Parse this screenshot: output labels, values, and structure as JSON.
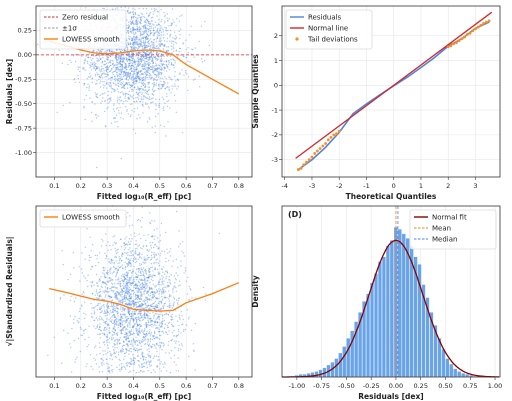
{
  "chart_data": [
    {
      "type": "scatter",
      "panel": "A",
      "xlabel": "Fitted log₁₀(R_eff) [pc]",
      "ylabel": "Residuals [dex]",
      "xlim": [
        0.03,
        0.85
      ],
      "ylim": [
        -1.25,
        0.5
      ],
      "xticks": [
        "0.1",
        "0.2",
        "0.3",
        "0.4",
        "0.5",
        "0.6",
        "0.7",
        "0.8"
      ],
      "yticks": [
        "0.25",
        "0.00",
        "-0.25",
        "-0.50",
        "-0.75",
        "-1.00"
      ],
      "legend": {
        "position": "top-left",
        "entries": [
          "Zero residual",
          "±1σ",
          "LOWESS smooth"
        ]
      },
      "series": [
        {
          "name": "Zero residual",
          "kind": "hline",
          "y": 0.0,
          "color": "#d62728",
          "dash": true
        },
        {
          "name": "±1σ",
          "kind": "hline",
          "color": "#999999",
          "dash": true
        },
        {
          "name": "LOWESS smooth",
          "kind": "line",
          "color": "#ff7f0e",
          "x": [
            0.08,
            0.15,
            0.2,
            0.25,
            0.3,
            0.35,
            0.4,
            0.45,
            0.5,
            0.55,
            0.6,
            0.7,
            0.8
          ],
          "y": [
            0.14,
            0.09,
            0.05,
            0.02,
            0.01,
            0.02,
            0.04,
            0.05,
            0.04,
            0.0,
            -0.1,
            -0.25,
            -0.4
          ]
        }
      ],
      "scatter": {
        "x_center": 0.4,
        "x_spread": 0.09,
        "y_center": -0.02,
        "y_spread": 0.27,
        "n": 2300,
        "color": "#4a86e8"
      }
    },
    {
      "type": "line",
      "panel": "B",
      "xlabel": "Theoretical Quantiles",
      "ylabel": "Sample Quantiles",
      "xlim": [
        -4.1,
        3.9
      ],
      "ylim": [
        -3.7,
        3.2
      ],
      "xticks": [
        "-4",
        "-3",
        "-2",
        "-1",
        "0",
        "1",
        "2",
        "3"
      ],
      "yticks": [
        "2",
        "1",
        "0",
        "-1",
        "-2",
        "-3"
      ],
      "legend": {
        "position": "top-left",
        "entries": [
          "Residuals",
          "Normal line",
          "Tail deviations"
        ]
      },
      "series": [
        {
          "name": "Residuals",
          "kind": "line",
          "color": "#4a86e8",
          "x": [
            -3.5,
            -3.0,
            -2.5,
            -2.0,
            -1.5,
            -1.0,
            -0.5,
            0.0,
            0.5,
            1.0,
            1.5,
            2.0,
            2.5,
            3.0,
            3.5
          ],
          "y": [
            -3.4,
            -3.0,
            -2.5,
            -1.9,
            -1.15,
            -0.75,
            -0.38,
            -0.02,
            0.33,
            0.72,
            1.12,
            1.58,
            1.88,
            2.3,
            2.55
          ]
        },
        {
          "name": "Normal line",
          "kind": "line",
          "color": "#d62728",
          "x": [
            -3.6,
            3.6
          ],
          "y": [
            -2.95,
            2.95
          ]
        },
        {
          "name": "Tail deviations",
          "kind": "points",
          "color": "#ff8c1a",
          "x": [
            -3.5,
            -3.4,
            -3.3,
            -3.2,
            -3.1,
            -3.0,
            -2.9,
            -2.8,
            -2.7,
            -2.6,
            -2.5,
            -2.4,
            -2.3,
            -2.2,
            -2.1,
            -2.0,
            2.0,
            2.1,
            2.2,
            2.3,
            2.4,
            2.5,
            2.6,
            2.7,
            2.8,
            2.9,
            3.0,
            3.1,
            3.2,
            3.3,
            3.4,
            3.5
          ],
          "y": [
            -3.4,
            -3.35,
            -3.2,
            -3.1,
            -3.0,
            -2.9,
            -2.75,
            -2.65,
            -2.55,
            -2.45,
            -2.35,
            -2.2,
            -2.1,
            -2.0,
            -1.95,
            -1.85,
            1.55,
            1.6,
            1.68,
            1.72,
            1.8,
            1.88,
            1.95,
            2.05,
            2.1,
            2.2,
            2.28,
            2.35,
            2.42,
            2.5,
            2.55,
            2.6
          ]
        }
      ]
    },
    {
      "type": "scatter",
      "panel": "C",
      "xlabel": "Fitted log₁₀(R_eff) [pc]",
      "ylabel": "√|Standardized Residuals|",
      "xlim": [
        0.03,
        0.85
      ],
      "ylim": [
        -0.05,
        2.0
      ],
      "xticks": [
        "0.1",
        "0.2",
        "0.3",
        "0.4",
        "0.5",
        "0.6",
        "0.7",
        "0.8"
      ],
      "yticks": [],
      "legend": {
        "position": "top-left",
        "entries": [
          "LOWESS smooth"
        ]
      },
      "series": [
        {
          "name": "LOWESS smooth",
          "kind": "line",
          "color": "#ff7f0e",
          "x": [
            0.08,
            0.15,
            0.2,
            0.25,
            0.3,
            0.35,
            0.4,
            0.45,
            0.5,
            0.55,
            0.6,
            0.7,
            0.8
          ],
          "y": [
            1.01,
            0.96,
            0.92,
            0.88,
            0.86,
            0.82,
            0.76,
            0.75,
            0.74,
            0.75,
            0.84,
            0.95,
            1.08
          ]
        }
      ],
      "scatter": {
        "x_center": 0.4,
        "x_spread": 0.09,
        "y_center": 0.8,
        "y_spread": 0.4,
        "n": 2300,
        "color": "#4a86e8"
      }
    },
    {
      "type": "bar",
      "panel": "D",
      "label": "(D)",
      "xlabel": "Residuals [dex]",
      "ylabel": "Density",
      "xlim": [
        -1.15,
        1.05
      ],
      "ylim": [
        0,
        1.85
      ],
      "xticks": [
        "-1.00",
        "-0.75",
        "-0.50",
        "-0.25",
        "0.00",
        "0.25",
        "0.50",
        "0.75",
        "1.00"
      ],
      "yticks": [],
      "legend": {
        "position": "top-right",
        "entries": [
          "Normal fit",
          "Mean",
          "Median"
        ]
      },
      "series": [
        {
          "name": "Normal fit",
          "kind": "pdf",
          "mean": 0.0,
          "sd": 0.27,
          "color": "#8b0000"
        },
        {
          "name": "Mean",
          "kind": "vline",
          "x": 0.0,
          "color": "#ff7f0e",
          "dash": true
        },
        {
          "name": "Median",
          "kind": "vline",
          "x": 0.02,
          "color": "#4a86e8",
          "dash": true
        }
      ],
      "histogram": {
        "bin_width": 0.04,
        "bin_starts": [
          -1.1,
          -1.06,
          -1.02,
          -0.98,
          -0.94,
          -0.9,
          -0.86,
          -0.82,
          -0.78,
          -0.74,
          -0.7,
          -0.66,
          -0.62,
          -0.58,
          -0.54,
          -0.5,
          -0.46,
          -0.42,
          -0.38,
          -0.34,
          -0.3,
          -0.26,
          -0.22,
          -0.18,
          -0.14,
          -0.1,
          -0.06,
          -0.02,
          0.02,
          0.06,
          0.1,
          0.14,
          0.18,
          0.22,
          0.26,
          0.3,
          0.34,
          0.38,
          0.42,
          0.46,
          0.5,
          0.54,
          0.58,
          0.62,
          0.66,
          0.7,
          0.74,
          0.78,
          0.82,
          0.86,
          0.9
        ],
        "density": [
          0.01,
          0.01,
          0.02,
          0.03,
          0.03,
          0.04,
          0.05,
          0.06,
          0.08,
          0.1,
          0.13,
          0.16,
          0.2,
          0.26,
          0.33,
          0.42,
          0.5,
          0.6,
          0.7,
          0.82,
          0.9,
          1.02,
          1.12,
          1.25,
          1.3,
          1.42,
          1.48,
          1.62,
          1.6,
          1.55,
          1.5,
          1.42,
          1.3,
          1.22,
          1.0,
          0.86,
          0.7,
          0.56,
          0.42,
          0.3,
          0.2,
          0.14,
          0.09,
          0.06,
          0.04,
          0.03,
          0.02,
          0.01,
          0.01,
          0.005,
          0.005
        ],
        "color": "#6aa4e8"
      }
    }
  ]
}
